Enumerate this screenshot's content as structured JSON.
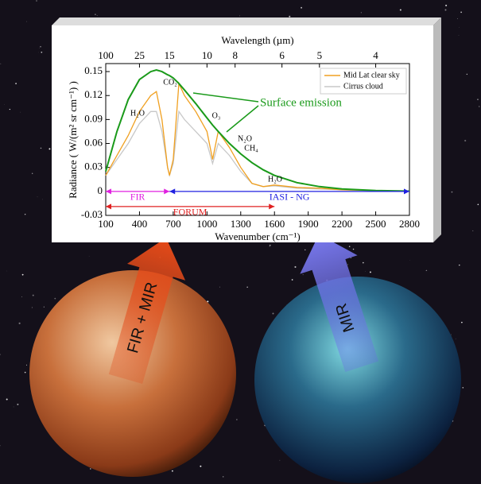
{
  "chart_data": {
    "type": "line",
    "x2_label": "Wavelength (µm)",
    "x_label": "Wavenumber (cm⁻¹)",
    "y_label": "Radiance ( W/(m² sr cm⁻¹) )",
    "x": [
      100,
      200,
      300,
      400,
      500,
      550,
      600,
      650,
      667,
      700,
      750,
      800,
      900,
      1000,
      1050,
      1100,
      1200,
      1300,
      1400,
      1500,
      1600,
      1800,
      2000,
      2200,
      2500,
      2800
    ],
    "series": [
      {
        "name": "Mid Lat clear sky",
        "color": "#f0a020",
        "values": [
          0.02,
          0.045,
          0.07,
          0.1,
          0.12,
          0.125,
          0.09,
          0.03,
          0.02,
          0.04,
          0.135,
          0.12,
          0.1,
          0.075,
          0.04,
          0.075,
          0.055,
          0.03,
          0.01,
          0.006,
          0.008,
          0.005,
          0.004,
          0.002,
          0.001,
          0.0003
        ]
      },
      {
        "name": "Cirrus cloud",
        "color": "#c8c8c8",
        "values": [
          0.02,
          0.04,
          0.06,
          0.085,
          0.1,
          0.1,
          0.075,
          0.03,
          0.02,
          0.035,
          0.1,
          0.09,
          0.075,
          0.06,
          0.035,
          0.06,
          0.045,
          0.025,
          0.01,
          0.006,
          0.007,
          0.004,
          0.003,
          0.002,
          0.001,
          0.0003
        ]
      },
      {
        "color": "#1a9a1a",
        "values": [
          0.025,
          0.075,
          0.115,
          0.14,
          0.15,
          0.152,
          0.15,
          0.146,
          0.145,
          0.142,
          0.135,
          0.127,
          0.11,
          0.092,
          0.083,
          0.075,
          0.06,
          0.047,
          0.036,
          0.027,
          0.02,
          0.011,
          0.006,
          0.003,
          0.001,
          0.0003
        ]
      }
    ],
    "xlim": [
      100,
      2800
    ],
    "xticks": [
      100,
      400,
      700,
      1000,
      1300,
      1600,
      1900,
      2200,
      2500,
      2800
    ],
    "ylim": [
      -0.03,
      0.16
    ],
    "yticks": [
      -0.03,
      0,
      0.03,
      0.06,
      0.09,
      0.12,
      0.15
    ],
    "x2ticks": [
      {
        "value": 100,
        "label": "100"
      },
      {
        "value": 400,
        "label": "25"
      },
      {
        "value": 666.7,
        "label": "15"
      },
      {
        "value": 1000,
        "label": "10"
      },
      {
        "value": 1250,
        "label": "8"
      },
      {
        "value": 1666.7,
        "label": "6"
      },
      {
        "value": 2000,
        "label": "5"
      },
      {
        "value": 2500,
        "label": "4"
      }
    ],
    "ranges": [
      {
        "label": "FIR",
        "start": 100,
        "end": 667,
        "color": "#e020e0"
      },
      {
        "label": "FORUM",
        "start": 100,
        "end": 1600,
        "color": "#e02020"
      },
      {
        "label": "IASI - NG",
        "start": 667,
        "end": 2800,
        "color": "#2020e0"
      }
    ],
    "annotations": [
      "H₂O",
      "CO₂",
      "O₃",
      "N₂O",
      "CH₄",
      "H₂O",
      "Surface emission"
    ],
    "legend": "upper right"
  },
  "arrows": [
    "FIR + MIR",
    "MIR"
  ]
}
